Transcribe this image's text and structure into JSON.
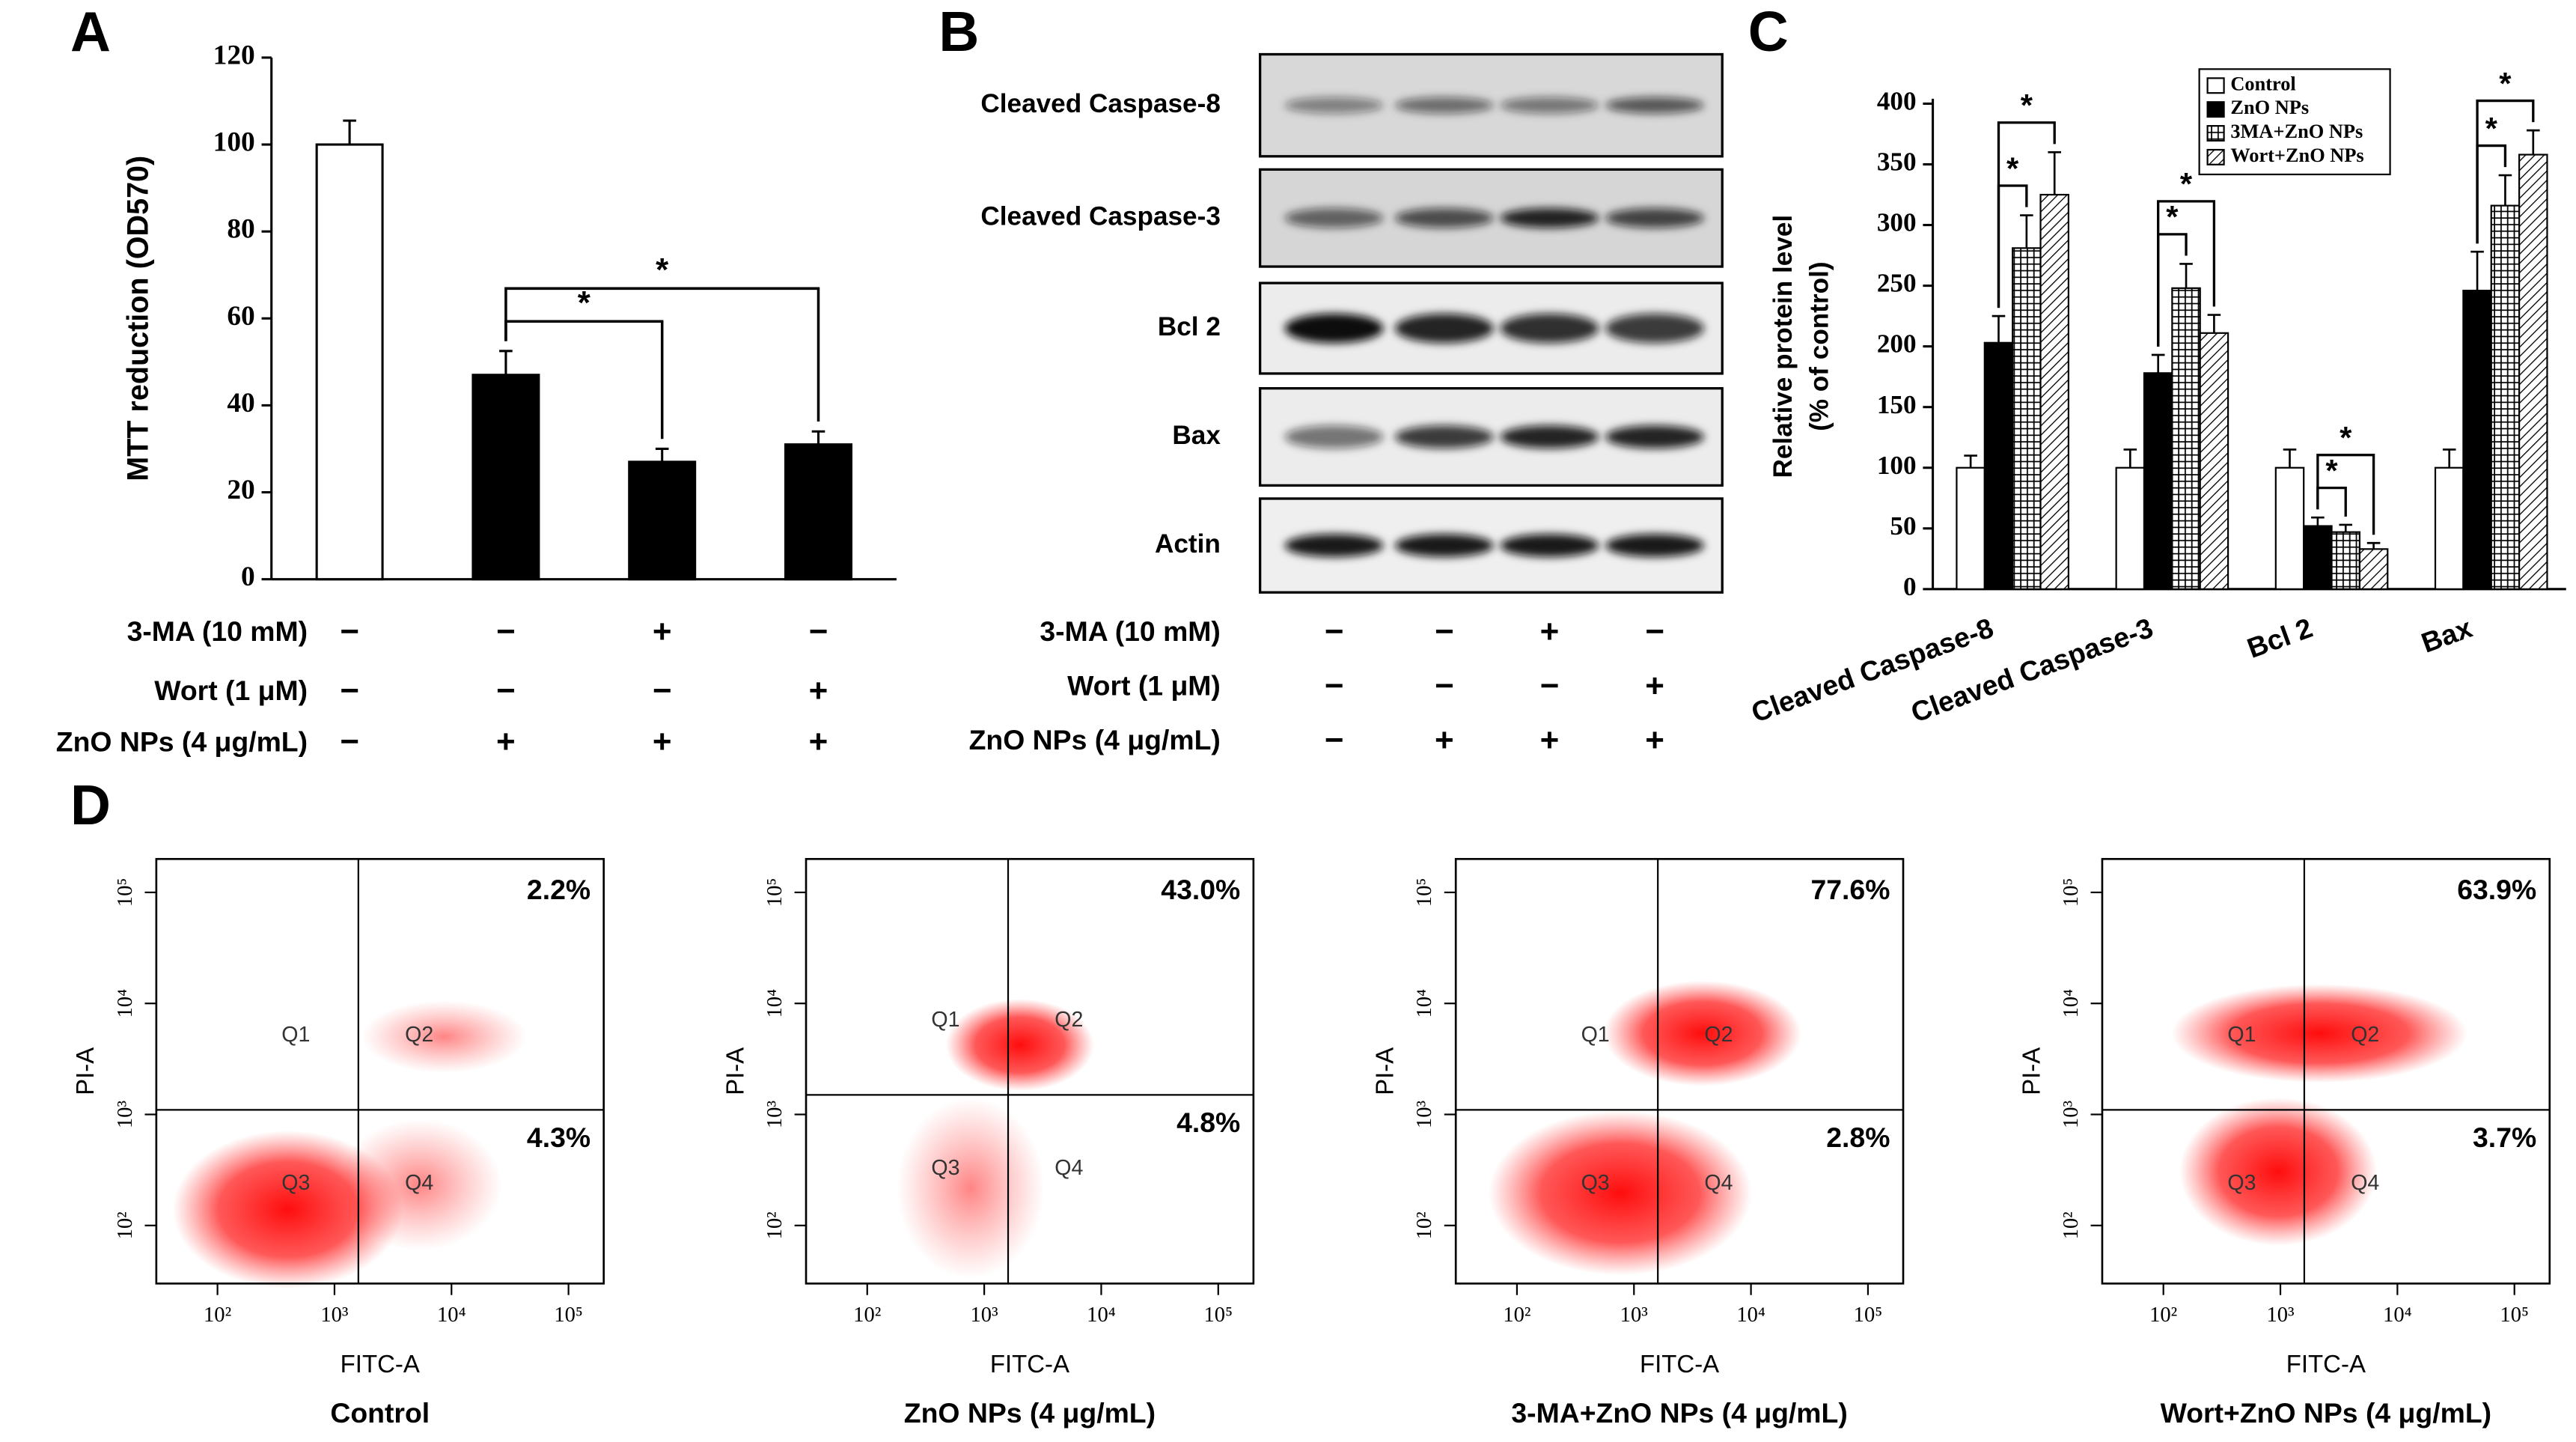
{
  "figure": {
    "panel_labels": [
      "A",
      "B",
      "C",
      "D"
    ]
  },
  "blot": {
    "proteins": [
      "Cleaved Caspase-8",
      "Cleaved Caspase-3",
      "Bcl 2",
      "Bax",
      "Actin"
    ],
    "treatments": [
      {
        "label": "3-MA (10 mM)",
        "signs": [
          "−",
          "−",
          "+",
          "−"
        ]
      },
      {
        "label": "Wort (1 μM)",
        "signs": [
          "−",
          "−",
          "−",
          "+"
        ]
      },
      {
        "label": "ZnO NPs (4 μg/mL)",
        "signs": [
          "−",
          "+",
          "+",
          "+"
        ]
      }
    ]
  },
  "chart_data": [
    {
      "type": "bar",
      "ylabel": "MTT reduction (OD570)",
      "categories": [
        null,
        null,
        null,
        null
      ],
      "values": [
        100,
        47,
        27,
        31
      ],
      "errors": [
        5.5,
        5.5,
        3,
        3
      ],
      "colors": [
        "#ffffff",
        "#000000",
        "#000000",
        "#000000"
      ],
      "ylim": [
        0,
        120
      ],
      "yticks": [
        0,
        20,
        40,
        60,
        80,
        100,
        120
      ],
      "treatments": [
        {
          "label": "3-MA (10 mM)",
          "signs": [
            "−",
            "−",
            "+",
            "−"
          ]
        },
        {
          "label": "Wort (1 μM)",
          "signs": [
            "−",
            "−",
            "−",
            "+"
          ]
        },
        {
          "label": "ZnO NPs (4 μg/mL)",
          "signs": [
            "−",
            "+",
            "+",
            "+"
          ]
        }
      ],
      "significance": [
        {
          "from": 1,
          "to": 2,
          "label": "*"
        },
        {
          "from": 1,
          "to": 3,
          "label": "*"
        }
      ]
    },
    {
      "type": "grouped_bar",
      "ylabel": [
        "Relative protein level",
        "(% of control)"
      ],
      "categories": [
        "Cleaved Caspase-8",
        "Cleaved Caspase-3",
        "Bcl 2",
        "Bax"
      ],
      "series": [
        {
          "name": "Control",
          "color": "#ffffff",
          "pattern": "none",
          "values": [
            100,
            100,
            100,
            100
          ],
          "errors": [
            10,
            15,
            15,
            15
          ]
        },
        {
          "name": "ZnO NPs",
          "color": "#000000",
          "pattern": "none",
          "values": [
            203,
            178,
            52,
            246
          ],
          "errors": [
            22,
            15,
            7,
            32
          ]
        },
        {
          "name": "3MA+ZnO NPs",
          "color": "#ffffff",
          "pattern": "grid",
          "values": [
            281,
            248,
            47,
            316
          ],
          "errors": [
            27,
            20,
            6,
            25
          ]
        },
        {
          "name": "Wort+ZnO NPs",
          "color": "#ffffff",
          "pattern": "hatch",
          "values": [
            325,
            211,
            33,
            358
          ],
          "errors": [
            35,
            15,
            5,
            20
          ]
        }
      ],
      "ylim": [
        0,
        400
      ],
      "yticks": [
        0,
        50,
        100,
        150,
        200,
        250,
        300,
        350,
        400
      ],
      "legend": "top-right",
      "significance": [
        {
          "category": 0,
          "from": 1,
          "to": 2,
          "label": "*"
        },
        {
          "category": 0,
          "from": 1,
          "to": 3,
          "label": "*"
        },
        {
          "category": 1,
          "from": 1,
          "to": 2,
          "label": "*"
        },
        {
          "category": 1,
          "from": 1,
          "to": 3,
          "label": "*"
        },
        {
          "category": 2,
          "from": 1,
          "to": 2,
          "label": "*"
        },
        {
          "category": 2,
          "from": 1,
          "to": 3,
          "label": "*"
        },
        {
          "category": 3,
          "from": 1,
          "to": 2,
          "label": "*"
        },
        {
          "category": 3,
          "from": 1,
          "to": 3,
          "label": "*"
        }
      ]
    },
    {
      "type": "flow_scatter",
      "title": "Control",
      "xlabel": "FITC-A",
      "ylabel": "PI-A",
      "log_scale": true,
      "xlim": [
        30,
        200000
      ],
      "ylim": [
        30,
        200000
      ],
      "xticks": [
        {
          "value": 100,
          "label": "10²"
        },
        {
          "value": 1000,
          "label": "10³"
        },
        {
          "value": 10000,
          "label": "10⁴"
        },
        {
          "value": 100000,
          "label": "10⁵"
        }
      ],
      "yticks": [
        {
          "value": 100,
          "label": "10²"
        },
        {
          "value": 1000,
          "label": "10³"
        },
        {
          "value": 10000,
          "label": "10⁴"
        },
        {
          "value": 100000,
          "label": "10⁵"
        }
      ],
      "gate": [
        1600,
        1100
      ],
      "quadrants": [
        "Q1",
        "Q2",
        "Q3",
        "Q4"
      ],
      "values": [
        2.2,
        4.3
      ],
      "value_labels": [
        "2.2%",
        "4.3%"
      ]
    },
    {
      "type": "flow_scatter",
      "title": "ZnO NPs (4 μg/mL)",
      "xlabel": "FITC-A",
      "ylabel": "PI-A",
      "log_scale": true,
      "xlim": [
        30,
        200000
      ],
      "ylim": [
        30,
        200000
      ],
      "xticks": [
        {
          "value": 100,
          "label": "10²"
        },
        {
          "value": 1000,
          "label": "10³"
        },
        {
          "value": 10000,
          "label": "10⁴"
        },
        {
          "value": 100000,
          "label": "10⁵"
        }
      ],
      "yticks": [
        {
          "value": 100,
          "label": "10²"
        },
        {
          "value": 1000,
          "label": "10³"
        },
        {
          "value": 10000,
          "label": "10⁴"
        },
        {
          "value": 100000,
          "label": "10⁵"
        }
      ],
      "gate": [
        1600,
        1500
      ],
      "quadrants": [
        "Q1",
        "Q2",
        "Q3",
        "Q4"
      ],
      "values": [
        43.0,
        4.8
      ],
      "value_labels": [
        "43.0%",
        "4.8%"
      ]
    },
    {
      "type": "flow_scatter",
      "title": "3-MA+ZnO NPs (4 μg/mL)",
      "xlabel": "FITC-A",
      "ylabel": "PI-A",
      "log_scale": true,
      "xlim": [
        30,
        200000
      ],
      "ylim": [
        30,
        200000
      ],
      "xticks": [
        {
          "value": 100,
          "label": "10²"
        },
        {
          "value": 1000,
          "label": "10³"
        },
        {
          "value": 10000,
          "label": "10⁴"
        },
        {
          "value": 100000,
          "label": "10⁵"
        }
      ],
      "yticks": [
        {
          "value": 100,
          "label": "10²"
        },
        {
          "value": 1000,
          "label": "10³"
        },
        {
          "value": 10000,
          "label": "10⁴"
        },
        {
          "value": 100000,
          "label": "10⁵"
        }
      ],
      "gate": [
        1600,
        1100
      ],
      "quadrants": [
        "Q1",
        "Q2",
        "Q3",
        "Q4"
      ],
      "values": [
        77.6,
        2.8
      ],
      "value_labels": [
        "77.6%",
        "2.8%"
      ]
    },
    {
      "type": "flow_scatter",
      "title": "Wort+ZnO NPs (4 μg/mL)",
      "xlabel": "FITC-A",
      "ylabel": "PI-A",
      "log_scale": true,
      "xlim": [
        30,
        200000
      ],
      "ylim": [
        30,
        200000
      ],
      "xticks": [
        {
          "value": 100,
          "label": "10²"
        },
        {
          "value": 1000,
          "label": "10³"
        },
        {
          "value": 10000,
          "label": "10⁴"
        },
        {
          "value": 100000,
          "label": "10⁵"
        }
      ],
      "yticks": [
        {
          "value": 100,
          "label": "10²"
        },
        {
          "value": 1000,
          "label": "10³"
        },
        {
          "value": 10000,
          "label": "10⁴"
        },
        {
          "value": 100000,
          "label": "10⁵"
        }
      ],
      "gate": [
        1600,
        1100
      ],
      "quadrants": [
        "Q1",
        "Q2",
        "Q3",
        "Q4"
      ],
      "values": [
        63.9,
        3.7
      ],
      "value_labels": [
        "63.9%",
        "3.7%"
      ]
    }
  ]
}
